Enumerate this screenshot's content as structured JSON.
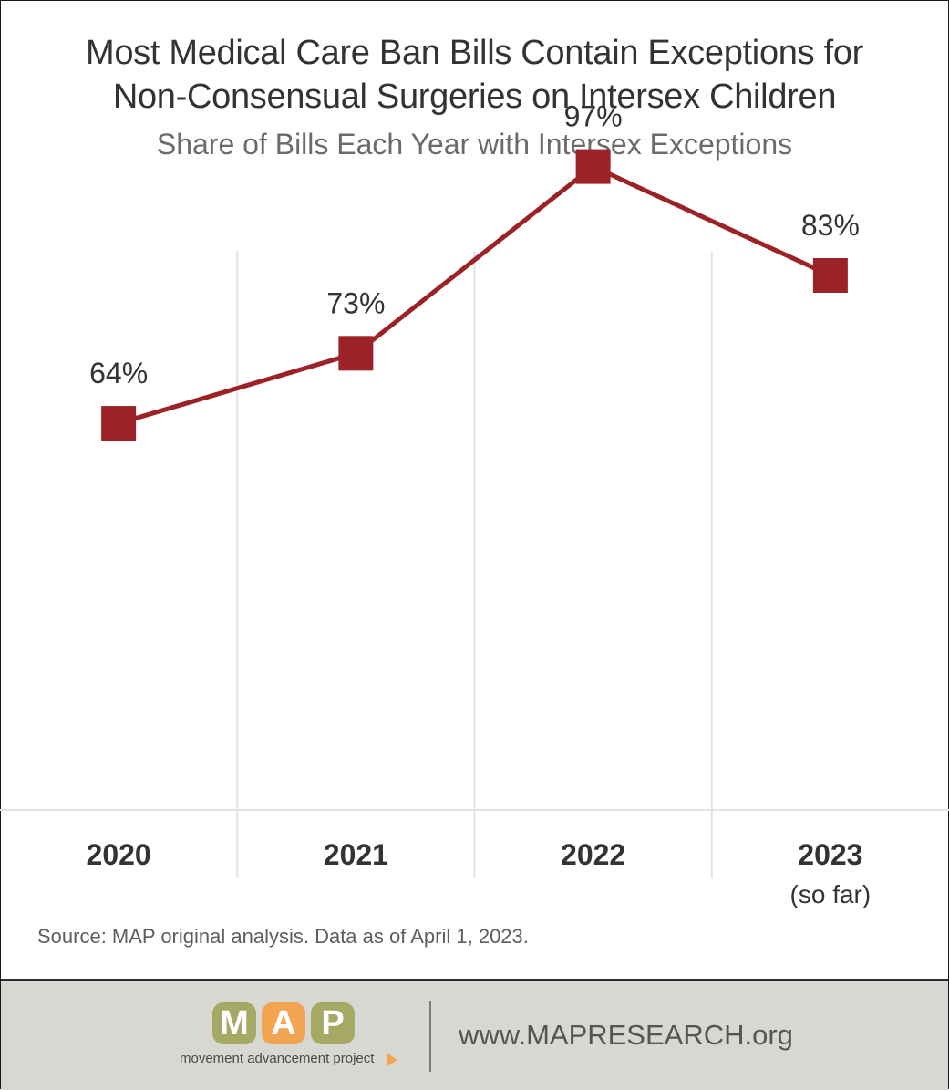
{
  "title_line_1": "Most Medical Care Ban Bills Contain Exceptions for",
  "title_line_2": "Non-Consensual Surgeries on Intersex Children",
  "subtitle": "Share of Bills Each Year with Intersex Exceptions",
  "source": "Source: MAP original analysis. Data as of April 1, 2023.",
  "chart_data": {
    "type": "line",
    "title": "Most Medical Care Ban Bills Contain Exceptions for Non-Consensual Surgeries on Intersex Children",
    "subtitle": "Share of Bills Each Year with Intersex Exceptions",
    "categories": [
      "2020",
      "2021",
      "2022",
      "2023"
    ],
    "category_notes": [
      "",
      "",
      "",
      "(so far)"
    ],
    "series": [
      {
        "values": [
          64,
          73,
          97,
          83
        ],
        "labels": [
          "64%",
          "73%",
          "97%",
          "83%"
        ],
        "color": "#9b2226",
        "marker": "square"
      }
    ],
    "ylim": [
      0,
      100
    ],
    "grid": "vertical",
    "legend": "none"
  },
  "footer": {
    "logo_letters": [
      "M",
      "A",
      "P"
    ],
    "logo_colors": [
      "#a5a963",
      "#f2a451",
      "#a5a963"
    ],
    "logo_tagline": "movement advancement project",
    "url": "www.MAPRESEARCH.org",
    "background": "#d8d8d3"
  }
}
